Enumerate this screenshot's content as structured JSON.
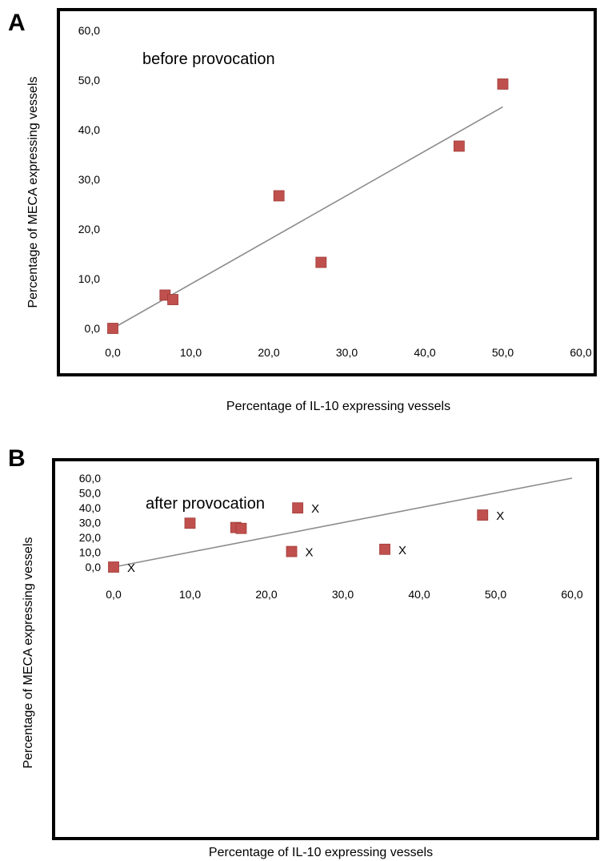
{
  "panels": [
    {
      "letter": "A",
      "annotation": "before provocation",
      "xlabel": "Percentage of IL-10 expressing vessels",
      "ylabel": "Percentage of MECA expressing vessels"
    },
    {
      "letter": "B",
      "annotation": "after provocation",
      "xlabel": "Percentage of IL-10 expressing vessels",
      "ylabel": "Percentage of MECA expressing vessels"
    }
  ],
  "chart_data": [
    {
      "type": "scatter",
      "title": "",
      "annotation": "before provocation",
      "xlabel": "Percentage of IL-10 expressing vessels",
      "ylabel": "Percentage of MECA expressing vessels",
      "xlim": [
        0,
        60
      ],
      "ylim": [
        0,
        60
      ],
      "xticks": [
        "0,0",
        "10,0",
        "20,0",
        "30,0",
        "40,0",
        "50,0",
        "60,0"
      ],
      "yticks": [
        "0,0",
        "10,0",
        "20,0",
        "30,0",
        "40,0",
        "50,0",
        "60,0"
      ],
      "grid": false,
      "marker_color": "#c0504d",
      "trendline_color": "#8c8c8c",
      "points": [
        {
          "x": 0.0,
          "y": 0.0
        },
        {
          "x": 6.7,
          "y": 6.7
        },
        {
          "x": 7.7,
          "y": 5.8
        },
        {
          "x": 21.3,
          "y": 26.7
        },
        {
          "x": 26.7,
          "y": 13.3
        },
        {
          "x": 44.4,
          "y": 36.7
        },
        {
          "x": 50.0,
          "y": 49.2
        }
      ],
      "trendline": [
        {
          "x": 0.0,
          "y": 0.0
        },
        {
          "x": 50.0,
          "y": 44.6
        }
      ]
    },
    {
      "type": "scatter",
      "title": "",
      "annotation": "after provocation",
      "xlabel": "Percentage of IL-10 expressing vessels",
      "ylabel": "Percentage of MECA expressing vessels",
      "xlim": [
        0,
        60
      ],
      "ylim": [
        0,
        60
      ],
      "xticks": [
        "0,0",
        "10,0",
        "20,0",
        "30,0",
        "40,0",
        "50,0",
        "60,0"
      ],
      "yticks": [
        "0,0",
        "10,0",
        "20,0",
        "30,0",
        "40,0",
        "50,0",
        "60,0"
      ],
      "grid": false,
      "marker_color": "#c0504d",
      "trendline_color": "#8c8c8c",
      "points": [
        {
          "x": 0.0,
          "y": 0.0,
          "mark": "X"
        },
        {
          "x": 10.0,
          "y": 29.6
        },
        {
          "x": 16.0,
          "y": 26.7
        },
        {
          "x": 16.7,
          "y": 26.1
        },
        {
          "x": 23.3,
          "y": 10.5,
          "mark": "X"
        },
        {
          "x": 24.1,
          "y": 39.9,
          "mark": "X"
        },
        {
          "x": 35.5,
          "y": 12.0,
          "mark": "X"
        },
        {
          "x": 48.3,
          "y": 35.1,
          "mark": "X"
        }
      ],
      "trendline": [
        {
          "x": 0.0,
          "y": 0.0
        },
        {
          "x": 60.0,
          "y": 60.0
        }
      ]
    }
  ]
}
